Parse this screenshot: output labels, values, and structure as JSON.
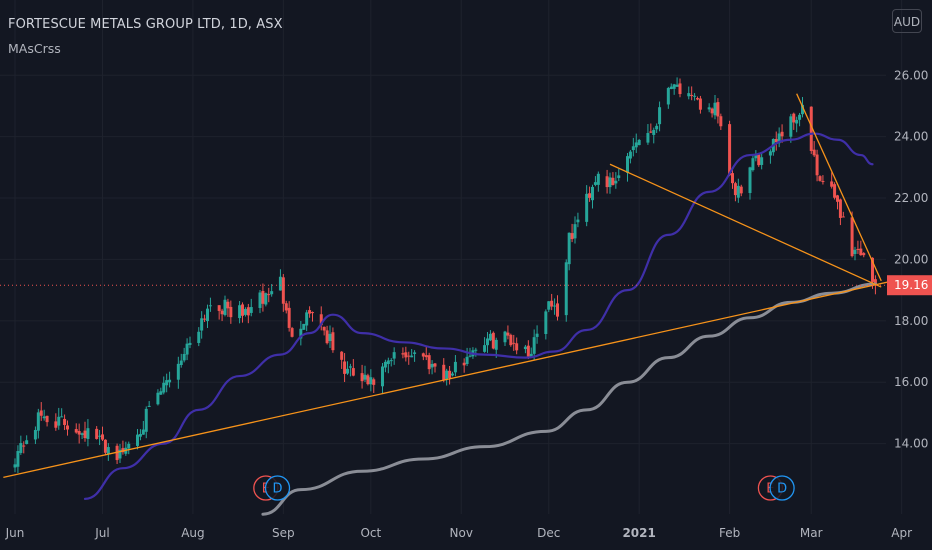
{
  "header": {
    "symbol_title": "FORTESCUE METALS GROUP LTD, 1D, ASX",
    "indicator": "MAsCrss",
    "currency": "AUD"
  },
  "colors": {
    "background": "#131722",
    "grid": "#1e222d",
    "up_candle": "#26a69a",
    "down_candle": "#ef5350",
    "ma_fast": "#3f2fa8",
    "ma_slow": "#8a8d96",
    "trendline": "#f7931a",
    "last_price_bg": "#ef5350"
  },
  "chart_data": {
    "type": "candlestick",
    "title": "FORTESCUE METALS GROUP LTD, 1D, ASX",
    "y_axis": {
      "ticks": [
        14,
        16,
        18,
        20,
        22,
        24,
        26
      ],
      "tick_labels": [
        "14.00",
        "16.00",
        "18.00",
        "20.00",
        "22.00",
        "24.00",
        "26.00"
      ],
      "range": [
        12.0,
        27.8
      ]
    },
    "x_axis": {
      "labels": [
        "Jun",
        "Jul",
        "Aug",
        "Sep",
        "Oct",
        "Nov",
        "Dec",
        "2021",
        "Feb",
        "Mar",
        "Apr"
      ],
      "bold_labels": [
        "2021"
      ]
    },
    "last_price": 19.16,
    "last_price_label": "19.16",
    "anchor_closes": [
      {
        "date": "2020-06-01",
        "close": 13.6
      },
      {
        "date": "2020-06-10",
        "close": 14.9
      },
      {
        "date": "2020-06-25",
        "close": 14.4
      },
      {
        "date": "2020-07-07",
        "close": 13.6
      },
      {
        "date": "2020-07-17",
        "close": 15.0
      },
      {
        "date": "2020-07-29",
        "close": 17.0
      },
      {
        "date": "2020-08-07",
        "close": 18.6
      },
      {
        "date": "2020-08-18",
        "close": 18.2
      },
      {
        "date": "2020-08-26",
        "close": 18.8
      },
      {
        "date": "2020-08-31",
        "close": 19.3
      },
      {
        "date": "2020-09-03",
        "close": 17.6
      },
      {
        "date": "2020-09-11",
        "close": 18.4
      },
      {
        "date": "2020-09-22",
        "close": 16.4
      },
      {
        "date": "2020-10-01",
        "close": 15.9
      },
      {
        "date": "2020-10-09",
        "close": 16.8
      },
      {
        "date": "2020-10-16",
        "close": 17.0
      },
      {
        "date": "2020-10-28",
        "close": 16.2
      },
      {
        "date": "2020-11-06",
        "close": 17.2
      },
      {
        "date": "2020-11-17",
        "close": 17.5
      },
      {
        "date": "2020-11-24",
        "close": 16.9
      },
      {
        "date": "2020-12-01",
        "close": 18.7
      },
      {
        "date": "2020-12-04",
        "close": 18.3
      },
      {
        "date": "2020-12-08",
        "close": 20.6
      },
      {
        "date": "2020-12-18",
        "close": 22.9
      },
      {
        "date": "2020-12-23",
        "close": 22.3
      },
      {
        "date": "2020-12-30",
        "close": 23.8
      },
      {
        "date": "2021-01-06",
        "close": 24.3
      },
      {
        "date": "2021-01-12",
        "close": 25.9
      },
      {
        "date": "2021-01-19",
        "close": 25.1
      },
      {
        "date": "2021-01-27",
        "close": 24.9
      },
      {
        "date": "2021-02-03",
        "close": 22.0
      },
      {
        "date": "2021-02-08",
        "close": 22.9
      },
      {
        "date": "2021-02-16",
        "close": 23.9
      },
      {
        "date": "2021-02-22",
        "close": 24.5
      },
      {
        "date": "2021-02-26",
        "close": 24.9
      },
      {
        "date": "2021-03-03",
        "close": 22.7
      },
      {
        "date": "2021-03-10",
        "close": 21.9
      },
      {
        "date": "2021-03-15",
        "close": 20.3
      },
      {
        "date": "2021-03-19",
        "close": 20.2
      },
      {
        "date": "2021-03-23",
        "close": 19.16
      }
    ],
    "series": [
      {
        "name": "MA fast",
        "points": [
          {
            "date": "2020-06-25",
            "value": 12.2
          },
          {
            "date": "2020-07-08",
            "value": 13.2
          },
          {
            "date": "2020-07-22",
            "value": 14.0
          },
          {
            "date": "2020-08-03",
            "value": 15.1
          },
          {
            "date": "2020-08-17",
            "value": 16.2
          },
          {
            "date": "2020-08-31",
            "value": 16.9
          },
          {
            "date": "2020-09-10",
            "value": 17.6
          },
          {
            "date": "2020-09-18",
            "value": 18.2
          },
          {
            "date": "2020-09-28",
            "value": 17.6
          },
          {
            "date": "2020-10-12",
            "value": 17.3
          },
          {
            "date": "2020-10-26",
            "value": 17.1
          },
          {
            "date": "2020-11-09",
            "value": 16.9
          },
          {
            "date": "2020-11-23",
            "value": 16.8
          },
          {
            "date": "2020-12-03",
            "value": 17.0
          },
          {
            "date": "2020-12-14",
            "value": 17.7
          },
          {
            "date": "2020-12-28",
            "value": 19.0
          },
          {
            "date": "2021-01-11",
            "value": 20.8
          },
          {
            "date": "2021-01-25",
            "value": 22.2
          },
          {
            "date": "2021-02-08",
            "value": 23.4
          },
          {
            "date": "2021-02-22",
            "value": 23.9
          },
          {
            "date": "2021-03-02",
            "value": 24.1
          },
          {
            "date": "2021-03-10",
            "value": 23.9
          },
          {
            "date": "2021-03-18",
            "value": 23.4
          },
          {
            "date": "2021-03-22",
            "value": 23.1
          }
        ]
      },
      {
        "name": "MA slow",
        "points": [
          {
            "date": "2020-08-25",
            "value": 11.7
          },
          {
            "date": "2020-09-07",
            "value": 12.5
          },
          {
            "date": "2020-09-28",
            "value": 13.1
          },
          {
            "date": "2020-10-19",
            "value": 13.5
          },
          {
            "date": "2020-11-09",
            "value": 13.9
          },
          {
            "date": "2020-11-30",
            "value": 14.4
          },
          {
            "date": "2020-12-14",
            "value": 15.1
          },
          {
            "date": "2020-12-28",
            "value": 16.0
          },
          {
            "date": "2021-01-11",
            "value": 16.8
          },
          {
            "date": "2021-01-25",
            "value": 17.5
          },
          {
            "date": "2021-02-08",
            "value": 18.1
          },
          {
            "date": "2021-02-22",
            "value": 18.6
          },
          {
            "date": "2021-03-08",
            "value": 18.9
          },
          {
            "date": "2021-03-23",
            "value": 19.2
          }
        ]
      }
    ],
    "annotations": [
      {
        "type": "trendline",
        "from": {
          "date": "2020-05-28",
          "value": 12.9
        },
        "to": {
          "date": "2021-03-29",
          "value": 19.3
        }
      },
      {
        "type": "trendline",
        "from": {
          "date": "2020-12-22",
          "value": 23.1
        },
        "to": {
          "date": "2021-03-25",
          "value": 19.1
        }
      },
      {
        "type": "trendline",
        "from": {
          "date": "2021-02-24",
          "value": 25.4
        },
        "to": {
          "date": "2021-03-25",
          "value": 19.3
        }
      },
      {
        "type": "event",
        "label": "E",
        "date": "2020-08-26"
      },
      {
        "type": "event",
        "label": "D",
        "date": "2020-08-30"
      },
      {
        "type": "event",
        "label": "E",
        "date": "2021-02-15"
      },
      {
        "type": "event",
        "label": "D",
        "date": "2021-02-19"
      }
    ],
    "grid": true
  }
}
